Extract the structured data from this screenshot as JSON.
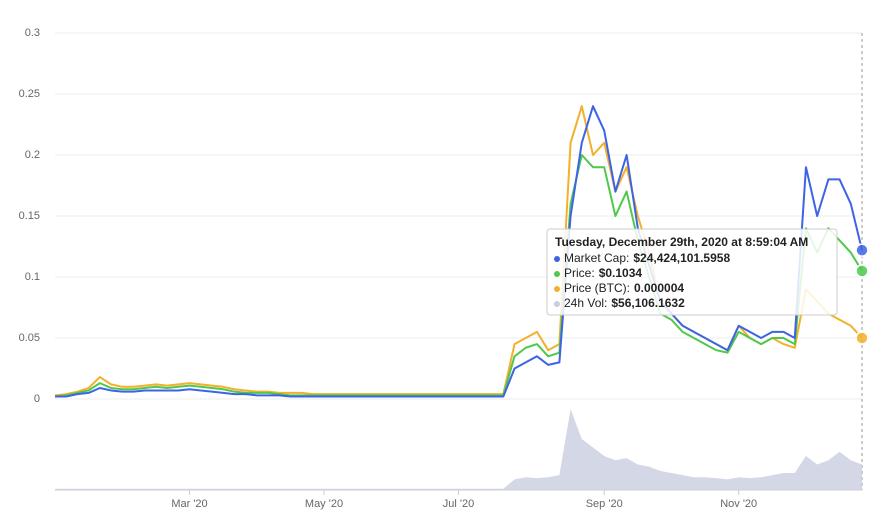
{
  "chart_data": {
    "type": "line",
    "categories": [
      null,
      null,
      null,
      null,
      null,
      null,
      null,
      null,
      null,
      null,
      null,
      null,
      "Mar '20",
      null,
      null,
      null,
      null,
      null,
      null,
      null,
      null,
      null,
      null,
      null,
      "May '20",
      null,
      null,
      null,
      null,
      null,
      null,
      null,
      null,
      null,
      null,
      null,
      "Jul '20",
      null,
      null,
      null,
      null,
      null,
      null,
      null,
      null,
      null,
      null,
      null,
      null,
      "Sep '20",
      null,
      null,
      null,
      null,
      null,
      null,
      null,
      null,
      null,
      null,
      null,
      "Nov '20",
      null,
      null,
      null,
      null,
      null,
      null,
      null,
      null,
      null,
      null,
      null
    ],
    "ylim": [
      0,
      0.3
    ],
    "yticks": [
      0,
      0.05,
      0.1,
      0.15,
      0.2,
      0.25,
      0.3
    ],
    "y2lim": [
      0,
      200000
    ],
    "grid": true,
    "series": [
      {
        "name": "24h Vol:",
        "color": "#c9cde0",
        "axis": "y2",
        "values": [
          3000,
          3000,
          3000,
          3000,
          3000,
          3000,
          3000,
          3000,
          3000,
          3000,
          3000,
          3000,
          3000,
          3000,
          3000,
          3000,
          3000,
          3000,
          3000,
          3000,
          3000,
          3000,
          3000,
          3000,
          3000,
          3000,
          3000,
          3000,
          3000,
          3000,
          3000,
          3000,
          3000,
          3000,
          3000,
          3000,
          3000,
          3000,
          3000,
          3000,
          3000,
          25000,
          30000,
          28000,
          30000,
          35000,
          190000,
          120000,
          100000,
          80000,
          70000,
          75000,
          60000,
          55000,
          45000,
          40000,
          35000,
          30000,
          30000,
          28000,
          25000,
          30000,
          28000,
          30000,
          35000,
          40000,
          40000,
          80000,
          60000,
          70000,
          90000,
          70000,
          60000
        ]
      },
      {
        "name": "Price (BTC):",
        "color": "#f3b02c",
        "values": [
          0.003,
          0.004,
          0.006,
          0.009,
          0.018,
          0.012,
          0.01,
          0.01,
          0.011,
          0.012,
          0.011,
          0.012,
          0.013,
          0.012,
          0.011,
          0.01,
          0.008,
          0.007,
          0.006,
          0.006,
          0.005,
          0.005,
          0.005,
          0.004,
          0.004,
          0.004,
          0.004,
          0.004,
          0.004,
          0.004,
          0.004,
          0.004,
          0.004,
          0.004,
          0.004,
          0.004,
          0.004,
          0.004,
          0.004,
          0.004,
          0.004,
          0.045,
          0.05,
          0.055,
          0.04,
          0.045,
          0.21,
          0.24,
          0.2,
          0.21,
          0.17,
          0.19,
          0.15,
          0.12,
          0.08,
          0.07,
          0.06,
          0.055,
          0.05,
          0.045,
          0.04,
          0.06,
          0.05,
          0.045,
          0.05,
          0.045,
          0.042,
          0.09,
          0.08,
          0.07,
          0.065,
          0.06,
          0.05
        ]
      },
      {
        "name": "Price:",
        "color": "#4fc94b",
        "values": [
          0.002,
          0.003,
          0.005,
          0.007,
          0.013,
          0.009,
          0.008,
          0.008,
          0.009,
          0.01,
          0.009,
          0.01,
          0.011,
          0.01,
          0.009,
          0.008,
          0.006,
          0.005,
          0.005,
          0.005,
          0.004,
          0.003,
          0.003,
          0.003,
          0.003,
          0.003,
          0.003,
          0.003,
          0.003,
          0.003,
          0.003,
          0.003,
          0.003,
          0.003,
          0.003,
          0.003,
          0.003,
          0.003,
          0.003,
          0.003,
          0.003,
          0.035,
          0.042,
          0.045,
          0.035,
          0.038,
          0.16,
          0.2,
          0.19,
          0.19,
          0.15,
          0.17,
          0.13,
          0.1,
          0.07,
          0.065,
          0.055,
          0.05,
          0.045,
          0.04,
          0.038,
          0.055,
          0.05,
          0.045,
          0.05,
          0.05,
          0.045,
          0.14,
          0.12,
          0.14,
          0.13,
          0.12,
          0.105
        ]
      },
      {
        "name": "Market Cap:",
        "color": "#3d63e6",
        "values": [
          0.002,
          0.002,
          0.004,
          0.005,
          0.009,
          0.007,
          0.006,
          0.006,
          0.007,
          0.007,
          0.007,
          0.007,
          0.008,
          0.007,
          0.006,
          0.005,
          0.004,
          0.004,
          0.003,
          0.003,
          0.003,
          0.002,
          0.002,
          0.002,
          0.002,
          0.002,
          0.002,
          0.002,
          0.002,
          0.002,
          0.002,
          0.002,
          0.002,
          0.002,
          0.002,
          0.002,
          0.002,
          0.002,
          0.002,
          0.002,
          0.002,
          0.025,
          0.03,
          0.035,
          0.028,
          0.03,
          0.15,
          0.21,
          0.24,
          0.22,
          0.17,
          0.2,
          0.14,
          0.11,
          0.08,
          0.07,
          0.06,
          0.055,
          0.05,
          0.045,
          0.04,
          0.06,
          0.055,
          0.05,
          0.055,
          0.055,
          0.05,
          0.19,
          0.15,
          0.18,
          0.18,
          0.16,
          0.122
        ]
      }
    ],
    "tooltip": {
      "title": "Tuesday, December 29th, 2020 at 8:59:04 AM",
      "items": [
        {
          "series": 3,
          "value": "$24,424,101.5958"
        },
        {
          "series": 2,
          "value": "$0.1034"
        },
        {
          "series": 1,
          "value": "0.000004"
        },
        {
          "series": 0,
          "value": "$56,106.1632"
        }
      ]
    }
  }
}
